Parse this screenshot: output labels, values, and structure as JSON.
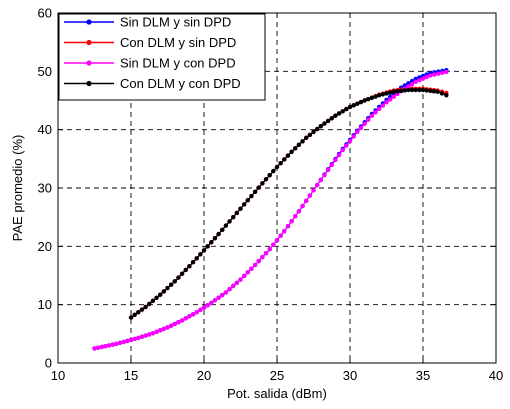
{
  "chart_data": {
    "type": "line",
    "title": "",
    "xlabel": "Pot. salida (dBm)",
    "ylabel": "PAE promedio (%)",
    "xlim": [
      10,
      40
    ],
    "ylim": [
      0,
      60
    ],
    "xticks": [
      10,
      15,
      20,
      25,
      30,
      35,
      40
    ],
    "yticks": [
      0,
      10,
      20,
      30,
      40,
      50,
      60
    ],
    "grid": true,
    "legend_position": "top-left",
    "series": [
      {
        "name": "Sin DLM y sin DPD",
        "color": "#0000ff",
        "x": [
          12.5,
          13.5,
          14.5,
          15.5,
          16.5,
          17.5,
          18.5,
          19.5,
          20.5,
          21.5,
          22.5,
          23.5,
          24.5,
          25.5,
          26.5,
          27.5,
          28.5,
          29.5,
          30.5,
          31.5,
          32.5,
          33.5,
          34.5,
          35.5,
          36.6
        ],
        "y": [
          2.5,
          3.0,
          3.6,
          4.3,
          5.1,
          6.1,
          7.3,
          8.7,
          10.3,
          12.1,
          14.3,
          16.8,
          19.5,
          22.6,
          26.0,
          29.6,
          33.2,
          36.7,
          39.8,
          42.7,
          45.1,
          47.2,
          48.7,
          49.7,
          50.2
        ]
      },
      {
        "name": "Con DLM y sin DPD",
        "color": "#ff0000",
        "x": [
          15.0,
          16.0,
          17.0,
          18.0,
          19.0,
          20.0,
          21.0,
          22.0,
          23.0,
          24.0,
          25.0,
          26.0,
          27.0,
          28.0,
          29.0,
          30.0,
          31.0,
          32.0,
          33.0,
          34.0,
          35.0,
          36.0,
          36.6
        ],
        "y": [
          7.8,
          9.6,
          11.7,
          14.0,
          16.6,
          19.3,
          22.1,
          25.0,
          27.9,
          30.8,
          33.6,
          36.2,
          38.6,
          40.6,
          42.4,
          43.9,
          45.0,
          46.0,
          46.7,
          47.0,
          47.0,
          46.7,
          46.3
        ]
      },
      {
        "name": "Sin DLM y con DPD",
        "color": "#ff00ff",
        "x": [
          12.5,
          13.5,
          14.5,
          15.5,
          16.5,
          17.5,
          18.5,
          19.5,
          20.5,
          21.5,
          22.5,
          23.5,
          24.5,
          25.5,
          26.5,
          27.5,
          28.5,
          29.5,
          30.5,
          31.5,
          32.5,
          33.5,
          34.5,
          35.5,
          36.6
        ],
        "y": [
          2.5,
          3.0,
          3.6,
          4.3,
          5.1,
          6.1,
          7.3,
          8.7,
          10.3,
          12.1,
          14.3,
          16.8,
          19.5,
          22.6,
          26.0,
          29.6,
          33.1,
          36.5,
          39.6,
          42.4,
          44.7,
          46.6,
          48.2,
          49.3,
          49.9
        ]
      },
      {
        "name": "Con DLM y con DPD",
        "color": "#000000",
        "x": [
          15.0,
          16.0,
          17.0,
          18.0,
          19.0,
          20.0,
          21.0,
          22.0,
          23.0,
          24.0,
          25.0,
          26.0,
          27.0,
          28.0,
          29.0,
          30.0,
          31.0,
          32.0,
          33.0,
          34.0,
          35.0,
          36.0,
          36.6
        ],
        "y": [
          7.8,
          9.6,
          11.7,
          14.0,
          16.6,
          19.3,
          22.1,
          25.0,
          27.9,
          30.8,
          33.6,
          36.2,
          38.6,
          40.6,
          42.4,
          43.9,
          45.0,
          45.9,
          46.5,
          46.8,
          46.8,
          46.5,
          45.9
        ]
      }
    ]
  }
}
